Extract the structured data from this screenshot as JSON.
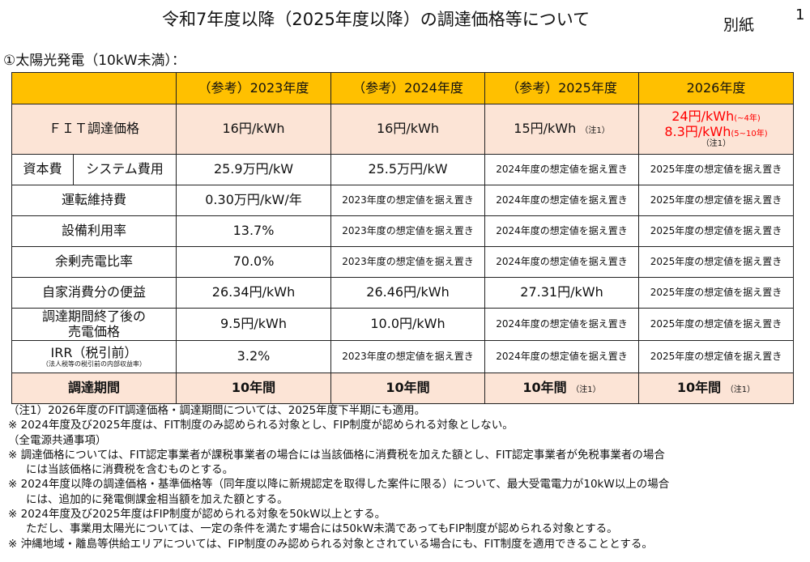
{
  "title": "令和7年度以降（2025年度以降）の調達価格等について",
  "attachment_label": "別紙",
  "page_number": "1",
  "section": "①太陽光発電（10kW未満）：",
  "table": {
    "headers": [
      "",
      "（参考）2023年度",
      "（参考）2024年度",
      "（参考）2025年度",
      "2026年度"
    ],
    "fit": {
      "label": "ＦＩＴ調達価格",
      "v2023": "16円/kWh",
      "v2024": "16円/kWh",
      "v2025": "15円/kWh",
      "v2025_note": "（注1）",
      "v2026_a": "24円/kWh",
      "v2026_a_sub": "(~4年)",
      "v2026_b": "8.3円/kWh",
      "v2026_b_sub": "(5~10年)",
      "v2026_note": "（注1）"
    },
    "capex": {
      "group": "資本費",
      "label": "システム費用",
      "v2023": "25.9万円/kW",
      "v2024": "25.5万円/kW",
      "v2025": "2024年度の想定値を据え置き",
      "v2026": "2025年度の想定値を据え置き"
    },
    "opex": {
      "label": "運転維持費",
      "v2023": "0.30万円/kW/年",
      "v2024": "2023年度の想定値を据え置き",
      "v2025": "2024年度の想定値を据え置き",
      "v2026": "2025年度の想定値を据え置き"
    },
    "util": {
      "label": "設備利用率",
      "v2023": "13.7%",
      "v2024": "2023年度の想定値を据え置き",
      "v2025": "2024年度の想定値を据え置き",
      "v2026": "2025年度の想定値を据え置き"
    },
    "surplus": {
      "label": "余剰売電比率",
      "v2023": "70.0%",
      "v2024": "2023年度の想定値を据え置き",
      "v2025": "2024年度の想定値を据え置き",
      "v2026": "2025年度の想定値を据え置き"
    },
    "selfuse": {
      "label": "自家消費分の便益",
      "v2023": "26.34円/kWh",
      "v2024": "26.46円/kWh",
      "v2025": "27.31円/kWh",
      "v2026": "2025年度の想定値を据え置き"
    },
    "post": {
      "label1": "調達期間終了後の",
      "label2": "売電価格",
      "v2023": "9.5円/kWh",
      "v2024": "10.0円/kWh",
      "v2025": "2024年度の想定値を据え置き",
      "v2026": "2025年度の想定値を据え置き"
    },
    "irr": {
      "label": "IRR（税引前）",
      "sub": "（法人税等の税引前の内部収益率）",
      "v2023": "3.2%",
      "v2024": "2023年度の想定値を据え置き",
      "v2025": "2024年度の想定値を据え置き",
      "v2026": "2025年度の想定値を据え置き"
    },
    "period": {
      "label": "調達期間",
      "v2023": "10年間",
      "v2024": "10年間",
      "v2025": "10年間",
      "v2025_note": "（注1）",
      "v2026": "10年間",
      "v2026_note": "（注1）"
    }
  },
  "notes": [
    "（注1）2026年度のFIT調達価格・調達期間については、2025年度下半期にも適用。",
    "※ 2024年度及び2025年度は、FIT制度のみ認められる対象とし、FIP制度が認められる対象としない。",
    "（全電源共通事項）",
    "※ 調達価格については、FIT認定事業者が課税事業者の場合には当該価格に消費税を加えた額とし、FIT認定事業者が免税事業者の場合",
    "には当該価格に消費税を含むものとする。",
    "※ 2024年度以降の調達価格・基準価格等（同年度以降に新規認定を取得した案件に限る）について、最大受電電力が10kW以上の場合",
    "には、追加的に発電側課金相当額を加えた額とする。",
    "※ 2024年度及び2025年度はFIP制度が認められる対象を50kW以上とする。",
    "ただし、事業用太陽光については、一定の条件を満たす場合には50kW未満であってもFIP制度が認められる対象とする。",
    "※ 沖縄地域・離島等供給エリアについては、FIP制度のみ認められる対象とされている場合にも、FIT制度を適用できることとする。"
  ],
  "colors": {
    "header": "#FFC000",
    "highlight_row": "#FCE4D6",
    "red": "#FF0000"
  }
}
